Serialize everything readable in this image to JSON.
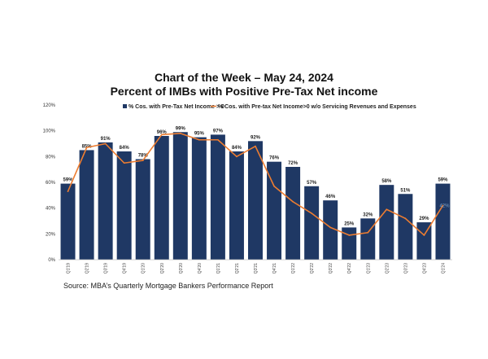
{
  "chart_data": {
    "type": "bar",
    "title": "Chart of the Week – May 24, 2024",
    "subtitle": "Percent of IMBs with Positive Pre-Tax Net income",
    "categories": [
      "Q1'19",
      "Q2'19",
      "Q3'19",
      "Q4'19",
      "Q1'20",
      "Q2'20",
      "Q3'20",
      "Q4'20",
      "Q1'21",
      "Q2'21",
      "Q3'21",
      "Q4'21",
      "Q1'22",
      "Q2'22",
      "Q3'22",
      "Q4'22",
      "Q1'23",
      "Q2'23",
      "Q3'23",
      "Q4'23",
      "Q1'24"
    ],
    "y_ticks": [
      "0%",
      "20%",
      "40%",
      "60%",
      "80%",
      "100%",
      "120%"
    ],
    "ylim": [
      0,
      120
    ],
    "grid": false,
    "legend_position": "top",
    "series": [
      {
        "name": "% Cos. with Pre-Tax Net Income > 0",
        "type": "bar",
        "color": "#1f3864",
        "values": [
          59,
          85,
          91,
          84,
          78,
          96,
          99,
          95,
          97,
          84,
          92,
          76,
          72,
          57,
          46,
          25,
          32,
          58,
          51,
          29,
          59
        ],
        "labels": [
          "59%",
          "85%",
          "91%",
          "84%",
          "78%",
          "96%",
          "99%",
          "95%",
          "97%",
          "84%",
          "92%",
          "76%",
          "72%",
          "57%",
          "46%",
          "25%",
          "32%",
          "58%",
          "51%",
          "29%",
          "59%"
        ]
      },
      {
        "name": "% Cos. with Pre-tax Net Income>0 w/o Servicing Revenues and Expenses",
        "type": "line",
        "color": "#ed7d31",
        "values": [
          53,
          87,
          90,
          75,
          77,
          97,
          98,
          93,
          93,
          80,
          88,
          57,
          45,
          36,
          25,
          19,
          21,
          39,
          32,
          19,
          42
        ],
        "end_label": "42%"
      }
    ],
    "source": "Source: MBA’s Quarterly Mortgage Bankers Performance Report"
  }
}
